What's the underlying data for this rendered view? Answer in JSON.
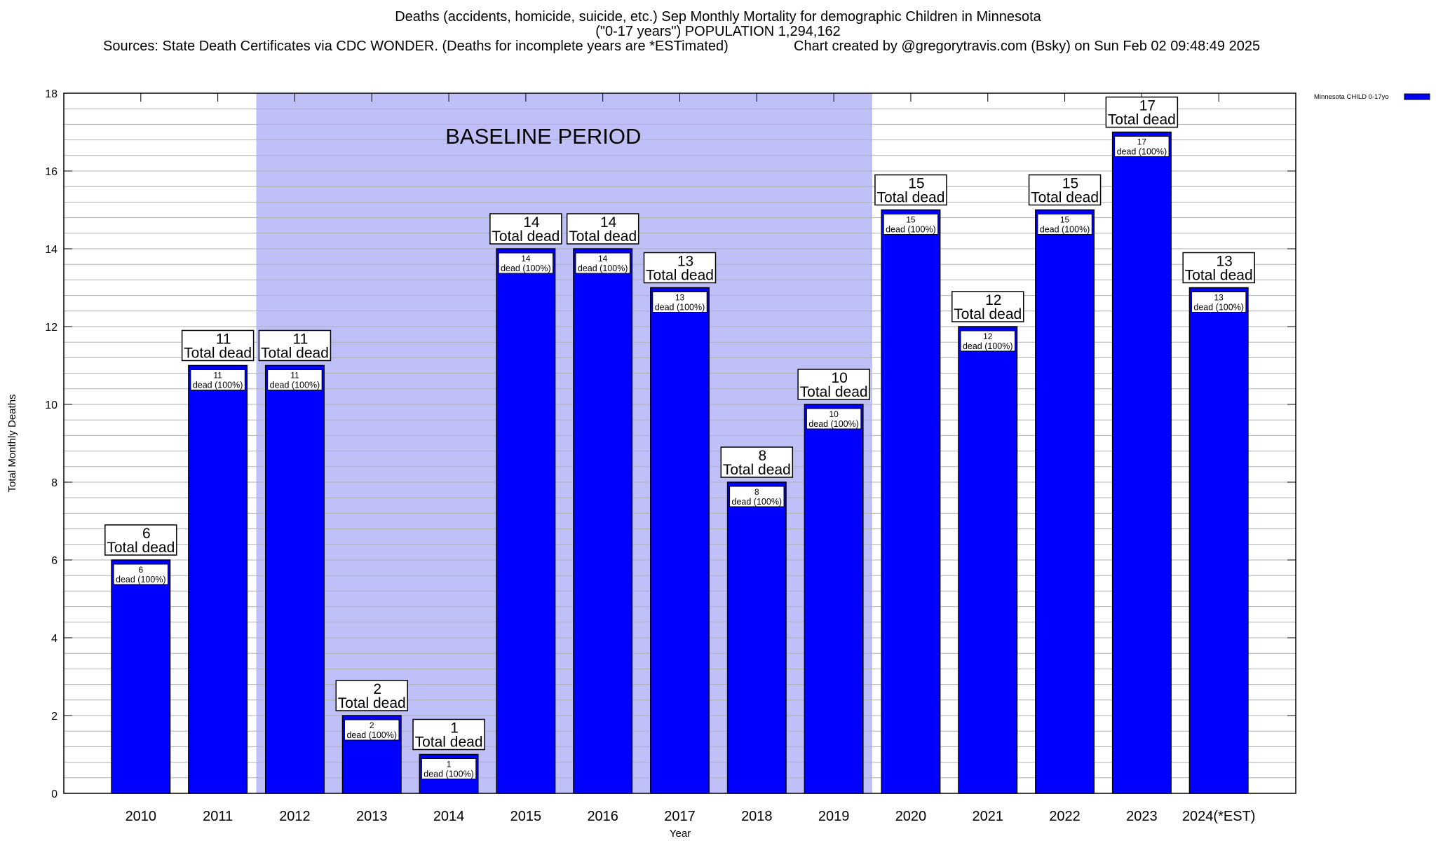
{
  "chart_data": {
    "type": "bar",
    "title_lines": [
      "Deaths (accidents, homicide, suicide, etc.) Sep Monthly Mortality for demographic Children in Minnesota",
      "(\"0-17 years\") POPULATION 1,294,162"
    ],
    "sources": "Sources: State Death Certificates via CDC WONDER. (Deaths for incomplete years are *ESTimated)",
    "credit": "Chart created by @gregorytravis.com (Bsky) on Sun Feb 02 09:48:49 2025",
    "xlabel": "Year",
    "ylabel": "Total Monthly Deaths",
    "ylim": [
      0,
      18
    ],
    "yticks": [
      0,
      2,
      4,
      6,
      8,
      10,
      12,
      14,
      16,
      18
    ],
    "minor_grid_step": 0.4,
    "categories": [
      "2010",
      "2011",
      "2012",
      "2013",
      "2014",
      "2015",
      "2016",
      "2017",
      "2018",
      "2019",
      "2020",
      "2021",
      "2022",
      "2023",
      "2024(*EST)"
    ],
    "series": [
      {
        "name": "Minnesota CHILD 0-17yo",
        "color": "#0000ff",
        "values": [
          6,
          11,
          11,
          2,
          1,
          14,
          14,
          13,
          8,
          10,
          15,
          12,
          15,
          17,
          13
        ]
      }
    ],
    "top_label_suffix": "Total dead",
    "inner_label_suffix": "dead (100%)",
    "annotation": {
      "text": "BASELINE PERIOD",
      "start_category": "2012",
      "end_category": "2019",
      "color": "#c0c0f8"
    },
    "legend_position": "top-right"
  }
}
